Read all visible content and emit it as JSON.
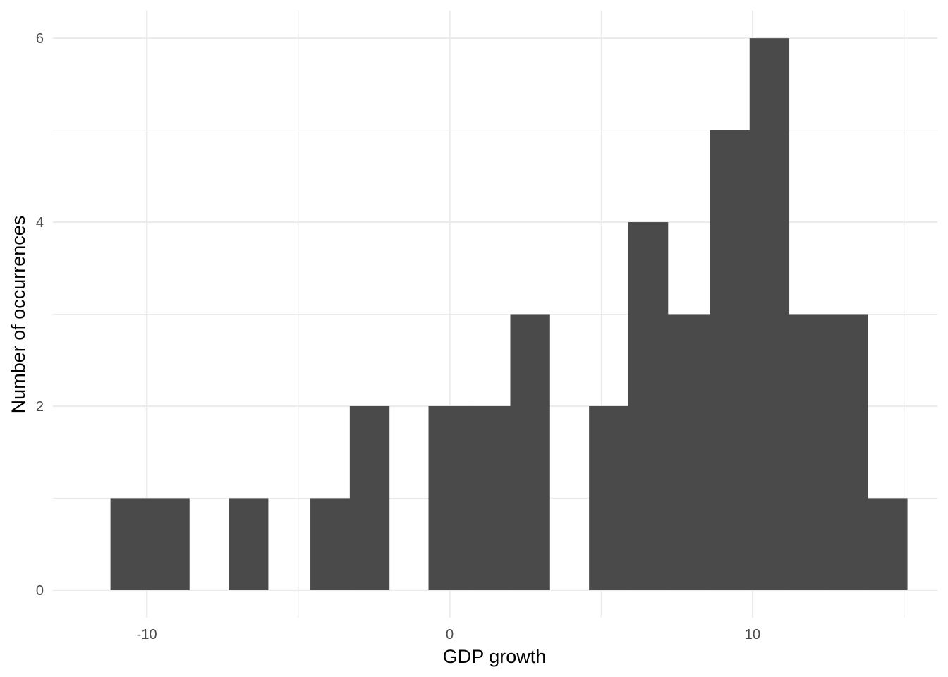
{
  "chart_data": {
    "type": "bar",
    "subtype": "histogram",
    "title": "",
    "xlabel": "GDP growth",
    "ylabel": "Number of occurrences",
    "xlim": [
      -13.1,
      16.1
    ],
    "ylim": [
      -0.3,
      6.3
    ],
    "x_ticks": [
      -10,
      0,
      10
    ],
    "x_tick_labels": [
      "-10",
      "0",
      "10"
    ],
    "x_minor_ticks": [
      -5,
      5,
      15
    ],
    "y_ticks": [
      0,
      2,
      4,
      6
    ],
    "y_tick_labels": [
      "0",
      "2",
      "4",
      "6"
    ],
    "y_minor_ticks": [
      1,
      3,
      5
    ],
    "grid": true,
    "bar_color": "#4a4a4a",
    "grid_color": "#ebebeb",
    "bins": [
      {
        "x0": -11.2,
        "x1": -9.9,
        "count": 1
      },
      {
        "x0": -9.9,
        "x1": -8.6,
        "count": 1
      },
      {
        "x0": -8.6,
        "x1": -7.3,
        "count": 0
      },
      {
        "x0": -7.3,
        "x1": -6.0,
        "count": 1
      },
      {
        "x0": -6.0,
        "x1": -4.6,
        "count": 0
      },
      {
        "x0": -4.6,
        "x1": -3.3,
        "count": 1
      },
      {
        "x0": -3.3,
        "x1": -2.0,
        "count": 2
      },
      {
        "x0": -2.0,
        "x1": -0.7,
        "count": 0
      },
      {
        "x0": -0.7,
        "x1": 0.7,
        "count": 2
      },
      {
        "x0": 0.7,
        "x1": 2.0,
        "count": 2
      },
      {
        "x0": 2.0,
        "x1": 3.3,
        "count": 3
      },
      {
        "x0": 3.3,
        "x1": 4.6,
        "count": 0
      },
      {
        "x0": 4.6,
        "x1": 5.9,
        "count": 2
      },
      {
        "x0": 5.9,
        "x1": 7.2,
        "count": 4
      },
      {
        "x0": 7.2,
        "x1": 8.6,
        "count": 3
      },
      {
        "x0": 8.6,
        "x1": 9.9,
        "count": 5
      },
      {
        "x0": 9.9,
        "x1": 11.2,
        "count": 6
      },
      {
        "x0": 11.2,
        "x1": 12.5,
        "count": 3
      },
      {
        "x0": 12.5,
        "x1": 13.8,
        "count": 3
      },
      {
        "x0": 13.8,
        "x1": 15.1,
        "count": 1
      }
    ]
  }
}
